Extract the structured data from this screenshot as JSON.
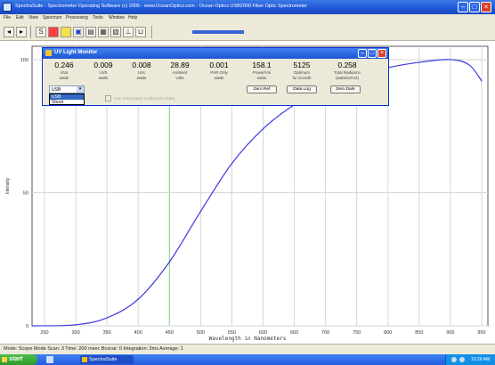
{
  "window": {
    "title": "SpectraSuite - Spectrometer Operating Software (c) 2005 - www.OceanOptics.com - Ocean Optics USB2000 Fiber Optic Spectrometer",
    "menu": [
      "File",
      "Edit",
      "View",
      "Spectrum",
      "Processing",
      "Tools",
      "Window",
      "Help"
    ]
  },
  "toolbar": {
    "icons": [
      "step-back-icon",
      "step-forward-icon",
      "scope-mode-icon",
      "dark-icon",
      "light-icon",
      "save-icon",
      "overlay-icon",
      "print-icon",
      "zoom-icon",
      "peak-icon",
      "annotate-icon"
    ]
  },
  "plot": {
    "type": "line",
    "x_axis_title": "Wavelength in Nanometers",
    "x_ticks": [
      "250",
      "300",
      "350",
      "400",
      "450",
      "500",
      "550",
      "600",
      "650",
      "700",
      "750",
      "800",
      "850",
      "900",
      "950"
    ],
    "y_ticks": [
      "100",
      "50",
      "0"
    ],
    "y_axis_label": "Intensity",
    "line_color": "#3b3bdc",
    "grid": true
  },
  "chart_data": {
    "type": "line",
    "xlabel": "Wavelength in Nanometers",
    "ylabel": "Intensity",
    "xlim": [
      230,
      960
    ],
    "ylim": [
      0,
      105
    ],
    "series": [
      {
        "x": [
          230,
          300,
          350,
          400,
          450,
          500,
          550,
          600,
          650,
          700,
          750,
          800,
          850,
          900,
          930,
          950
        ],
        "y": [
          0,
          0.4,
          3,
          10,
          24,
          43,
          61,
          74,
          83,
          89,
          94,
          97,
          99,
          100,
          98,
          92
        ]
      }
    ]
  },
  "dialog": {
    "title": "UV Light Monitor",
    "meters": [
      {
        "value": "0.246",
        "label1": "UVa",
        "label2": "watts"
      },
      {
        "value": "0.009",
        "label1": "UVb",
        "label2": "watts"
      },
      {
        "value": "0.008",
        "label1": "UVc",
        "label2": "watts"
      },
      {
        "value": "28.89",
        "label1": "Ambient",
        "label2": "volts"
      },
      {
        "value": "0.001",
        "label1": "PAR Only",
        "label2": "watts"
      },
      {
        "value": "158.1",
        "label1": "Power/Vis",
        "label2": "watts"
      },
      {
        "value": "5125",
        "label1": "Optimum",
        "label2": "for Growth"
      },
      {
        "value": "0.258",
        "label1": "Total Radiance",
        "label2": "(watts/sr/m2)"
      }
    ],
    "buttons": {
      "zero_ref": "Zero Ref",
      "data_log": "Data Log",
      "zero_dark": "Zero Dark"
    },
    "select_value": "USB",
    "dropdown_options": [
      "USB",
      "Shoot"
    ],
    "checkbox_label": "Use Instrument Calibration Data"
  },
  "statusbar": {
    "text": "Mode: Scope Mode  Scan: 3  Time: 200 msec  Boxcar: 0  Integration: 3ms  Average: 1"
  },
  "taskbar": {
    "start": "start",
    "task": "SpectraSuite",
    "clock": "10:26 AM"
  }
}
